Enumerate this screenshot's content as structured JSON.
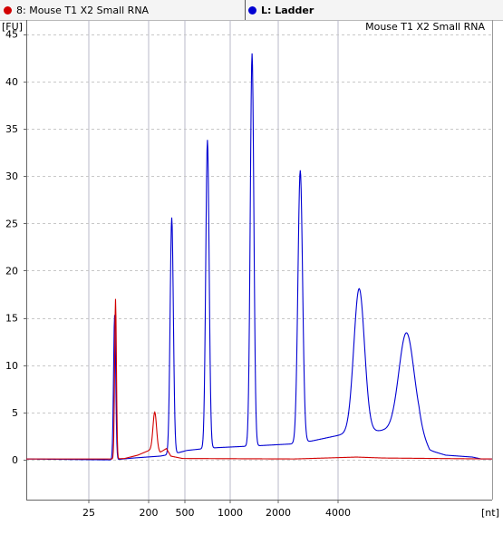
{
  "legend": {
    "sample": {
      "label": "8: Mouse T1 X2 Small RNA",
      "color": "#d20000"
    },
    "ladder": {
      "label": "L: Ladder",
      "color": "#0000d2"
    }
  },
  "chart_data": {
    "type": "line",
    "title": "Mouse T1 X2 Small RNA",
    "ylabel": "[FU]",
    "xlabel": "[nt]",
    "ylim": [
      -4.2,
      46.5
    ],
    "yticks": [
      0,
      5,
      10,
      15,
      20,
      25,
      30,
      35,
      40,
      45
    ],
    "xtick_labels": [
      "25",
      "200",
      "500",
      "1000",
      "2000",
      "4000"
    ],
    "grid": true,
    "series": [
      {
        "name": "L: Ladder",
        "color": "#0000d2",
        "baseline": [
          [
            0,
            0.1
          ],
          [
            97,
            0
          ],
          [
            120,
            0.2
          ],
          [
            150,
            0.4
          ],
          [
            168,
            0.7
          ],
          [
            180,
            1.0
          ],
          [
            200,
            1.2
          ],
          [
            215,
            1.3
          ],
          [
            260,
            1.5
          ],
          [
            300,
            1.7
          ],
          [
            320,
            2.0
          ],
          [
            345,
            2.5
          ],
          [
            360,
            2.8
          ],
          [
            400,
            3.1
          ],
          [
            440,
            3.0
          ],
          [
            452,
            1.0
          ],
          [
            470,
            0.5
          ],
          [
            500,
            0.3
          ],
          [
            510,
            0.1
          ],
          [
            522,
            0.1
          ]
        ],
        "peaks": [
          {
            "x": 99,
            "height": 15.3,
            "width": 1.2
          },
          {
            "x": 163,
            "height": 25.0,
            "width": 1.8
          },
          {
            "x": 203,
            "height": 32.6,
            "width": 1.9
          },
          {
            "x": 253,
            "height": 41.5,
            "width": 2.0
          },
          {
            "x": 307,
            "height": 28.8,
            "width": 2.6
          },
          {
            "x": 373,
            "height": 15.2,
            "width": 6.0
          },
          {
            "x": 426,
            "height": 10.4,
            "width": 8.5
          }
        ]
      },
      {
        "name": "8: Mouse T1 X2 Small RNA",
        "color": "#d20000",
        "baseline": [
          [
            0,
            0.1
          ],
          [
            96,
            0.1
          ],
          [
            110,
            0.15
          ],
          [
            125,
            0.5
          ],
          [
            135,
            0.9
          ],
          [
            143,
            1.2
          ],
          [
            150,
            0.8
          ],
          [
            157,
            1.2
          ],
          [
            162,
            0.4
          ],
          [
            175,
            0.15
          ],
          [
            300,
            0.1
          ],
          [
            370,
            0.3
          ],
          [
            400,
            0.2
          ],
          [
            522,
            0.1
          ]
        ],
        "peaks": [
          {
            "x": 100,
            "height": 16.9,
            "width": 1.0
          },
          {
            "x": 144,
            "height": 3.9,
            "width": 2.0
          }
        ]
      }
    ]
  }
}
